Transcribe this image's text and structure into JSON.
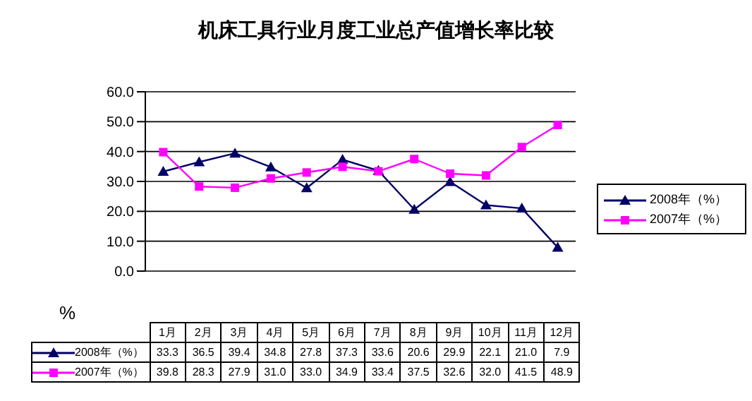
{
  "chart_data": {
    "type": "line",
    "title": "机床工具行业月度工业总产值增长率比较",
    "ylabel": "%",
    "categories": [
      "1月",
      "2月",
      "3月",
      "4月",
      "5月",
      "6月",
      "7月",
      "8月",
      "9月",
      "10月",
      "11月",
      "12月"
    ],
    "series": [
      {
        "name": "2008年（%）",
        "color": "#000066",
        "marker": "triangle",
        "values": [
          33.3,
          36.5,
          39.4,
          34.8,
          27.8,
          37.3,
          33.6,
          20.6,
          29.9,
          22.1,
          21.0,
          7.9
        ],
        "value_labels": [
          "33.3",
          "36.5",
          "39.4",
          "34.8",
          "27.8",
          "37.3",
          "33.6",
          "20.6",
          "29.9",
          "22.1",
          "21.0",
          "7.9"
        ]
      },
      {
        "name": "2007年（%）",
        "color": "#ff00ff",
        "marker": "square",
        "values": [
          39.8,
          28.3,
          27.9,
          31.0,
          33.0,
          34.9,
          33.4,
          37.5,
          32.6,
          32.0,
          41.5,
          48.9
        ],
        "value_labels": [
          "39.8",
          "28.3",
          "27.9",
          "31.0",
          "33.0",
          "34.9",
          "33.4",
          "37.5",
          "32.6",
          "32.0",
          "41.5",
          "48.9"
        ]
      }
    ],
    "ylim": [
      0,
      60
    ],
    "yticks": [
      {
        "value": 0,
        "label": "0.0"
      },
      {
        "value": 10,
        "label": "10.0"
      },
      {
        "value": 20,
        "label": "20.0"
      },
      {
        "value": 30,
        "label": "30.0"
      },
      {
        "value": 40,
        "label": "40.0"
      },
      {
        "value": 50,
        "label": "50.0"
      },
      {
        "value": 60,
        "label": "60.0"
      }
    ],
    "grid": "y",
    "legend": "right"
  }
}
